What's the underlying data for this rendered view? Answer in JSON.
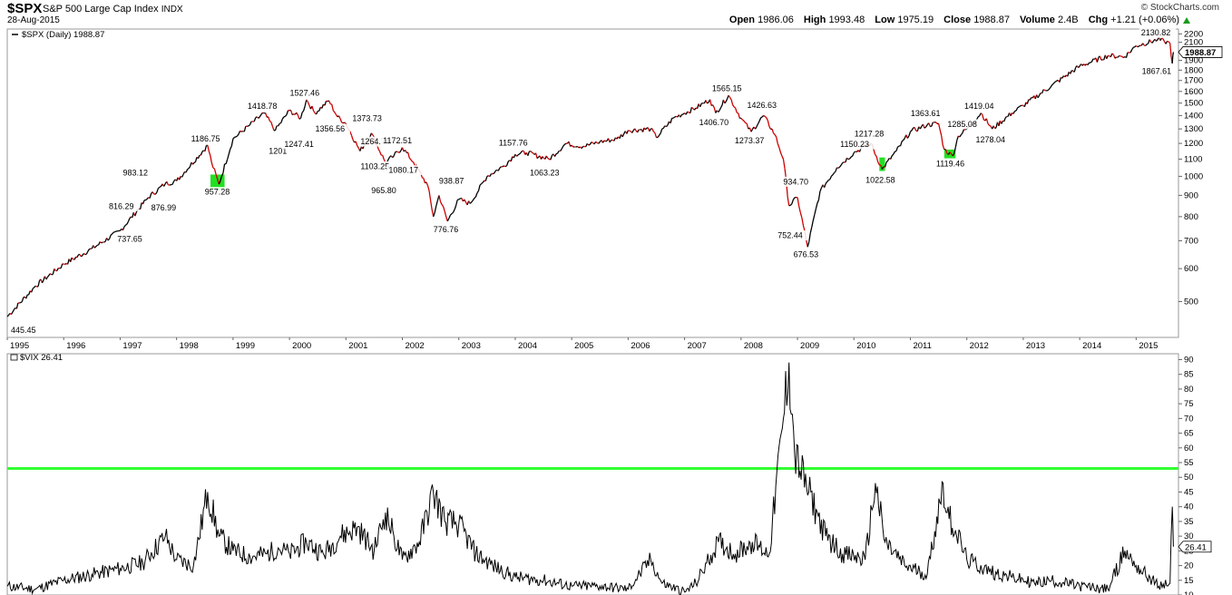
{
  "header": {
    "symbol": "$SPX",
    "name": "S&P 500 Large Cap Index",
    "exchange": "INDX",
    "date": "28-Aug-2015",
    "brand": "© StockCharts.com",
    "open_label": "Open",
    "open": "1986.06",
    "high_label": "High",
    "high": "1993.48",
    "low_label": "Low",
    "low": "1975.19",
    "close_label": "Close",
    "close": "1988.87",
    "volume_label": "Volume",
    "volume": "2.4B",
    "chg_label": "Chg",
    "chg": "+1.21 (+0.06%)",
    "up_color": "#1a9a1a"
  },
  "chart_data": [
    {
      "type": "line",
      "legend": "$SPX (Daily) 1988.87",
      "last_value": "1988.87",
      "yscale": "log",
      "ylim": [
        410,
        2260
      ],
      "yticks": [
        500,
        600,
        700,
        800,
        900,
        1000,
        1100,
        1200,
        1300,
        1400,
        1500,
        1600,
        1700,
        1800,
        1900,
        2000,
        2100,
        2200
      ],
      "xlim": [
        1995.0,
        2015.75
      ],
      "xticks": [
        "1995",
        "1996",
        "1997",
        "1998",
        "1999",
        "2000",
        "2001",
        "2002",
        "2003",
        "2004",
        "2005",
        "2006",
        "2007",
        "2008",
        "2009",
        "2010",
        "2011",
        "2012",
        "2013",
        "2014",
        "2015"
      ],
      "line_color": "#000000",
      "down_color": "#cc0000",
      "series": [
        {
          "x": [
            1995.0,
            1995.5,
            1996.0,
            1996.5,
            1997.0,
            1997.5,
            1997.8,
            1998.0,
            1998.55,
            1998.62,
            1998.75,
            1999.0,
            1999.3,
            1999.55,
            1999.75,
            2000.0,
            2000.2,
            2000.3,
            2000.45,
            2000.7,
            2000.85,
            2001.0,
            2001.25,
            2001.45,
            2001.7,
            2001.85,
            2002.0,
            2002.2,
            2002.45,
            2002.55,
            2002.65,
            2002.8,
            2003.0,
            2003.2,
            2003.5,
            2003.8,
            2004.0,
            2004.2,
            2004.6,
            2004.9,
            2005.2,
            2005.5,
            2005.8,
            2006.0,
            2006.4,
            2006.5,
            2006.8,
            2007.0,
            2007.2,
            2007.45,
            2007.55,
            2007.78,
            2008.0,
            2008.18,
            2008.4,
            2008.6,
            2008.75,
            2008.85,
            2009.0,
            2009.18,
            2009.4,
            2009.7,
            2010.0,
            2010.3,
            2010.5,
            2010.75,
            2011.0,
            2011.3,
            2011.5,
            2011.6,
            2011.75,
            2011.85,
            2012.0,
            2012.25,
            2012.45,
            2012.8,
            2013.0,
            2013.5,
            2014.0,
            2014.5,
            2014.8,
            2015.0,
            2015.38,
            2015.5,
            2015.6,
            2015.64,
            2015.66
          ],
          "y": [
            460,
            545,
            615,
            670,
            740,
            890,
            960,
            975,
            1186.75,
            1080,
            957.28,
            1230,
            1330,
            1418.78,
            1290,
            1440,
            1380,
            1527.46,
            1420,
            1520,
            1390,
            1340,
            1150,
            1270,
            1080,
            1120,
            1172.51,
            1080,
            950,
            800,
            900,
            780,
            880,
            860,
            1000,
            1060,
            1130,
            1140,
            1100,
            1200,
            1180,
            1210,
            1230,
            1290,
            1300,
            1240,
            1380,
            1420,
            1460,
            1530,
            1420,
            1565.15,
            1380,
            1280,
            1400,
            1260,
            1100,
            850,
            890,
            676.53,
            920,
            1050,
            1140,
            1200,
            1040,
            1150,
            1280,
            1330,
            1340,
            1160,
            1120,
            1250,
            1300,
            1419.04,
            1300,
            1420,
            1480,
            1650,
            1840,
            1950,
            1940,
            2060,
            2130.82,
            2110,
            2090,
            1867.61,
            1988.87
          ]
        }
      ],
      "annotations": [
        {
          "text": "445.45",
          "x": 1995.0,
          "y": 445.45,
          "pos": "below"
        },
        {
          "text": "737.65",
          "x": 1997.2,
          "y": 737.65,
          "pos": "below"
        },
        {
          "text": "816.29",
          "x": 1997.05,
          "y": 816.29,
          "pos": "above"
        },
        {
          "text": "876.99",
          "x": 1997.8,
          "y": 876.99,
          "pos": "below"
        },
        {
          "text": "983.12",
          "x": 1997.3,
          "y": 983.12,
          "pos": "above"
        },
        {
          "text": "1186.75",
          "x": 1998.55,
          "y": 1186.75,
          "pos": "above"
        },
        {
          "text": "957.28",
          "x": 1998.75,
          "y": 957.28,
          "pos": "below"
        },
        {
          "text": "1418.78",
          "x": 1999.55,
          "y": 1418.78,
          "pos": "above"
        },
        {
          "text": "1201",
          "x": 1999.8,
          "y": 1201,
          "pos": "below"
        },
        {
          "text": "1247.41",
          "x": 2000.2,
          "y": 1247.41,
          "pos": "below"
        },
        {
          "text": "1527.46",
          "x": 2000.3,
          "y": 1527.46,
          "pos": "above"
        },
        {
          "text": "1356.56",
          "x": 2000.75,
          "y": 1356.56,
          "pos": "below"
        },
        {
          "text": "1373.73",
          "x": 2001.05,
          "y": 1373.73,
          "pos": "right"
        },
        {
          "text": "1264.74",
          "x": 2001.55,
          "y": 1264.74,
          "pos": "below"
        },
        {
          "text": "1103.25",
          "x": 2001.55,
          "y": 1103.25,
          "pos": "below"
        },
        {
          "text": "1172.51",
          "x": 2001.95,
          "y": 1172.51,
          "pos": "above"
        },
        {
          "text": "1080.17",
          "x": 2002.05,
          "y": 1080.17,
          "pos": "below"
        },
        {
          "text": "965.80",
          "x": 2001.7,
          "y": 965.8,
          "pos": "below"
        },
        {
          "text": "938.87",
          "x": 2002.9,
          "y": 938.87,
          "pos": "above"
        },
        {
          "text": "776.76",
          "x": 2002.8,
          "y": 776.76,
          "pos": "below"
        },
        {
          "text": "1157.76",
          "x": 2004.0,
          "y": 1157.76,
          "pos": "above"
        },
        {
          "text": "1063.23",
          "x": 2004.55,
          "y": 1063.23,
          "pos": "below"
        },
        {
          "text": "1565.15",
          "x": 2007.78,
          "y": 1565.15,
          "pos": "above"
        },
        {
          "text": "1406.70",
          "x": 2007.55,
          "y": 1406.7,
          "pos": "below"
        },
        {
          "text": "1426.63",
          "x": 2008.4,
          "y": 1426.63,
          "pos": "above"
        },
        {
          "text": "1273.37",
          "x": 2008.18,
          "y": 1273.37,
          "pos": "below"
        },
        {
          "text": "934.70",
          "x": 2009.0,
          "y": 934.7,
          "pos": "above"
        },
        {
          "text": "752.44",
          "x": 2008.9,
          "y": 752.44,
          "pos": "below"
        },
        {
          "text": "676.53",
          "x": 2009.18,
          "y": 676.53,
          "pos": "below"
        },
        {
          "text": "1150.23",
          "x": 2010.05,
          "y": 1150.23,
          "pos": "above"
        },
        {
          "text": "1217.28",
          "x": 2010.3,
          "y": 1217.28,
          "pos": "above"
        },
        {
          "text": "1022.58",
          "x": 2010.5,
          "y": 1022.58,
          "pos": "below"
        },
        {
          "text": "1363.61",
          "x": 2011.3,
          "y": 1363.61,
          "pos": "above"
        },
        {
          "text": "1285.08",
          "x": 2011.95,
          "y": 1285.08,
          "pos": "above"
        },
        {
          "text": "1419.04",
          "x": 2012.25,
          "y": 1419.04,
          "pos": "above"
        },
        {
          "text": "1119.46",
          "x": 2011.75,
          "y": 1119.46,
          "pos": "below"
        },
        {
          "text": "1278.04",
          "x": 2012.45,
          "y": 1278.04,
          "pos": "below"
        },
        {
          "text": "2130.82",
          "x": 2015.38,
          "y": 2130.82,
          "pos": "above"
        },
        {
          "text": "1867.61",
          "x": 2015.64,
          "y": 1867.61,
          "pos": "below"
        }
      ],
      "highlights": [
        {
          "x0": 1998.6,
          "x1": 1998.85,
          "y0": 930,
          "y1": 1010,
          "color": "#22e022"
        },
        {
          "x0": 2010.45,
          "x1": 2010.55,
          "y0": 1030,
          "y1": 1110,
          "color": "#22e022"
        },
        {
          "x0": 2011.6,
          "x1": 2011.8,
          "y0": 1105,
          "y1": 1160,
          "color": "#22e022"
        }
      ]
    },
    {
      "type": "line",
      "legend": "$VIX 26.41",
      "last_value": "26.41",
      "yscale": "linear",
      "ylim": [
        10,
        92
      ],
      "yticks": [
        10,
        15,
        20,
        25,
        30,
        35,
        40,
        45,
        50,
        55,
        60,
        65,
        70,
        75,
        80,
        85,
        90
      ],
      "xlim": [
        1995.0,
        2015.75
      ],
      "line_color": "#000000",
      "hline": {
        "y": 53,
        "color": "#33ff33"
      },
      "series": [
        {
          "x": [
            1995.0,
            1995.5,
            1996.0,
            1996.5,
            1997.0,
            1997.4,
            1997.8,
            1998.0,
            1998.3,
            1998.55,
            1998.75,
            1999.0,
            1999.3,
            1999.6,
            1999.8,
            2000.0,
            2000.3,
            2000.6,
            2000.9,
            2001.2,
            2001.5,
            2001.7,
            2001.85,
            2002.0,
            2002.3,
            2002.55,
            2002.75,
            2003.0,
            2003.3,
            2003.6,
            2004.0,
            2004.5,
            2005.0,
            2005.5,
            2006.0,
            2006.4,
            2006.6,
            2007.0,
            2007.2,
            2007.6,
            2007.9,
            2008.2,
            2008.5,
            2008.75,
            2008.85,
            2008.95,
            2009.2,
            2009.5,
            2009.8,
            2010.2,
            2010.38,
            2010.55,
            2010.9,
            2011.3,
            2011.58,
            2011.65,
            2011.8,
            2012.0,
            2012.4,
            2012.8,
            2013.2,
            2013.5,
            2014.0,
            2014.5,
            2014.8,
            2015.0,
            2015.4,
            2015.6,
            2015.64,
            2015.66
          ],
          "y": [
            13,
            12,
            15,
            17,
            19,
            21,
            30,
            22,
            20,
            45,
            30,
            25,
            23,
            24,
            26,
            24,
            28,
            24,
            30,
            33,
            25,
            38,
            30,
            22,
            28,
            45,
            35,
            34,
            24,
            20,
            16,
            15,
            13,
            13,
            12,
            22,
            14,
            11,
            14,
            28,
            24,
            28,
            24,
            70,
            89,
            58,
            45,
            30,
            24,
            22,
            48,
            28,
            20,
            17,
            48,
            38,
            32,
            22,
            18,
            16,
            14,
            15,
            13,
            12,
            25,
            20,
            13,
            14,
            40,
            26.41
          ]
        }
      ]
    }
  ]
}
